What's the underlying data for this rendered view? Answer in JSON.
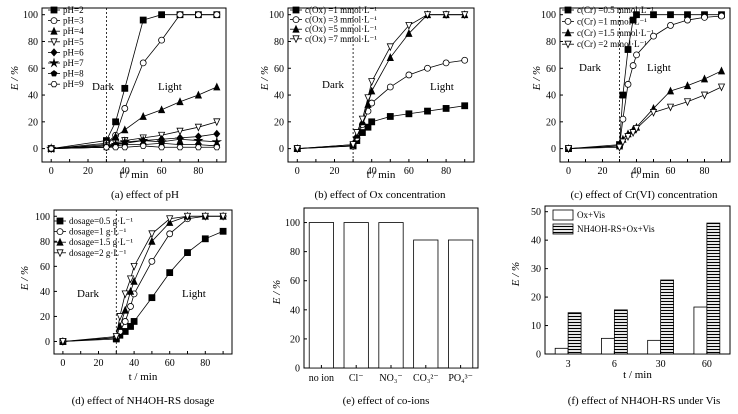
{
  "figure": {
    "panels": [
      {
        "caption": "(a) effect of pH",
        "annotation_left": "Dark",
        "annotation_right": "Light"
      },
      {
        "caption": "(b) effect of Ox concentration",
        "annotation_left": "Dark",
        "annotation_right": "Light"
      },
      {
        "caption": "(c) effect of Cr(VI) concentration",
        "annotation_left": "Dark",
        "annotation_right": "Light"
      },
      {
        "caption": "(d) effect of NH4OH-RS dosage",
        "annotation_left": "Dark",
        "annotation_right": "Light"
      },
      {
        "caption": "(e) effect of co-ions"
      },
      {
        "caption": "(f) effect of NH4OH-RS under Vis"
      }
    ]
  },
  "chart_data": [
    {
      "type": "line",
      "ylabel": "E / %",
      "xlabel": "t / min",
      "xlim": [
        -5,
        95
      ],
      "ylim": [
        -10,
        105
      ],
      "xticks": [
        0,
        10,
        20,
        30,
        40,
        50,
        60,
        70,
        80,
        90
      ],
      "yticks": [
        0,
        20,
        40,
        60,
        80,
        100
      ],
      "divider_x": 30,
      "legend": "top-left",
      "series": [
        {
          "name": "pH=2",
          "marker": "square",
          "x": [
            0,
            30,
            35,
            40,
            50,
            60,
            70,
            80,
            90
          ],
          "y": [
            0,
            6,
            20,
            45,
            96,
            100,
            100,
            100,
            100
          ]
        },
        {
          "name": "pH=3",
          "marker": "circle-open",
          "x": [
            0,
            30,
            35,
            40,
            50,
            60,
            70,
            80,
            90
          ],
          "y": [
            0,
            4,
            10,
            30,
            64,
            81,
            100,
            100,
            100
          ]
        },
        {
          "name": "pH=4",
          "marker": "triangle",
          "x": [
            0,
            30,
            35,
            40,
            50,
            60,
            70,
            80,
            90
          ],
          "y": [
            0,
            3,
            9,
            14,
            24,
            29,
            35,
            40,
            46
          ]
        },
        {
          "name": "pH=5",
          "marker": "triangle-down-open",
          "x": [
            0,
            30,
            35,
            40,
            50,
            60,
            70,
            80,
            90
          ],
          "y": [
            0,
            2,
            4,
            6,
            8,
            10,
            13,
            16,
            20
          ]
        },
        {
          "name": "pH=6",
          "marker": "diamond",
          "x": [
            0,
            30,
            35,
            40,
            50,
            60,
            70,
            80,
            90
          ],
          "y": [
            0,
            1,
            3,
            4,
            6,
            7,
            8,
            9,
            11
          ]
        },
        {
          "name": "pH=7",
          "marker": "star",
          "x": [
            0,
            30,
            35,
            40,
            50,
            60,
            70,
            80,
            90
          ],
          "y": [
            0,
            2,
            3,
            5,
            6,
            5,
            7,
            6,
            5
          ]
        },
        {
          "name": "pH=8",
          "marker": "pentagon",
          "x": [
            0,
            30,
            35,
            40,
            50,
            60,
            70,
            80,
            90
          ],
          "y": [
            0,
            1,
            2,
            3,
            3,
            4,
            3,
            3,
            2
          ]
        },
        {
          "name": "pH=9",
          "marker": "hexagon-open",
          "x": [
            0,
            30,
            35,
            40,
            50,
            60,
            70,
            80,
            90
          ],
          "y": [
            0,
            1,
            1,
            1,
            2,
            1,
            1,
            1,
            1
          ]
        }
      ]
    },
    {
      "type": "line",
      "ylabel": "E / %",
      "xlabel": "t / min",
      "xlim": [
        -5,
        95
      ],
      "ylim": [
        -10,
        105
      ],
      "xticks": [
        0,
        10,
        20,
        30,
        40,
        50,
        60,
        70,
        80,
        90
      ],
      "yticks": [
        0,
        20,
        40,
        60,
        80,
        100
      ],
      "divider_x": 30,
      "legend": "top-left",
      "series": [
        {
          "name": "c(Ox) =1 mmol·L⁻¹",
          "marker": "square",
          "x": [
            0,
            30,
            32,
            35,
            38,
            40,
            50,
            60,
            70,
            80,
            90
          ],
          "y": [
            0,
            2,
            6,
            12,
            16,
            20,
            24,
            26,
            28,
            30,
            32
          ]
        },
        {
          "name": "c(Ox) =3 mmol·L⁻¹",
          "marker": "circle-open",
          "x": [
            0,
            30,
            32,
            35,
            38,
            40,
            50,
            60,
            70,
            80,
            90
          ],
          "y": [
            0,
            2,
            8,
            18,
            28,
            34,
            46,
            55,
            60,
            64,
            66
          ]
        },
        {
          "name": "c(Ox) =5 mmol·L⁻¹",
          "marker": "triangle",
          "x": [
            0,
            30,
            32,
            35,
            38,
            40,
            50,
            60,
            70,
            80,
            90
          ],
          "y": [
            0,
            3,
            10,
            20,
            33,
            43,
            68,
            86,
            100,
            100,
            100
          ]
        },
        {
          "name": "c(Ox) =7 mmol·L⁻¹",
          "marker": "triangle-down-open",
          "x": [
            0,
            30,
            32,
            35,
            38,
            40,
            50,
            60,
            70,
            80,
            90
          ],
          "y": [
            0,
            3,
            12,
            22,
            38,
            50,
            76,
            92,
            100,
            100,
            100
          ]
        }
      ]
    },
    {
      "type": "line",
      "ylabel": "E / %",
      "xlabel": "t / min",
      "xlim": [
        -5,
        95
      ],
      "ylim": [
        -10,
        105
      ],
      "xticks": [
        0,
        10,
        20,
        30,
        40,
        50,
        60,
        70,
        80,
        90
      ],
      "yticks": [
        0,
        20,
        40,
        60,
        80,
        100
      ],
      "divider_x": 30,
      "legend": "top-left",
      "series": [
        {
          "name": "c(Cr) =0.5 mmol·L⁻¹",
          "marker": "square",
          "x": [
            0,
            30,
            32,
            35,
            38,
            40,
            50,
            60,
            70,
            80,
            90
          ],
          "y": [
            0,
            3,
            40,
            74,
            96,
            100,
            100,
            100,
            100,
            100,
            100
          ]
        },
        {
          "name": "c(Cr) =1 mmol·L⁻¹",
          "marker": "circle-open",
          "x": [
            0,
            30,
            32,
            35,
            38,
            40,
            50,
            60,
            70,
            80,
            90
          ],
          "y": [
            0,
            2,
            22,
            48,
            62,
            70,
            84,
            92,
            96,
            98,
            99
          ]
        },
        {
          "name": "c(Cr) =1.5 mmol·L⁻¹",
          "marker": "triangle",
          "x": [
            0,
            30,
            32,
            35,
            38,
            40,
            50,
            60,
            70,
            80,
            90
          ],
          "y": [
            0,
            2,
            7,
            11,
            14,
            16,
            30,
            43,
            47,
            52,
            58
          ]
        },
        {
          "name": "c(Cr) =2 mmol·L⁻¹",
          "marker": "triangle-down-open",
          "x": [
            0,
            30,
            32,
            35,
            38,
            40,
            50,
            60,
            70,
            80,
            90
          ],
          "y": [
            0,
            1,
            5,
            9,
            12,
            15,
            27,
            31,
            35,
            40,
            46
          ]
        }
      ]
    },
    {
      "type": "line",
      "ylabel": "E / %",
      "xlabel": "t / min",
      "xlim": [
        -5,
        95
      ],
      "ylim": [
        -10,
        105
      ],
      "xticks": [
        0,
        10,
        20,
        30,
        40,
        50,
        60,
        70,
        80,
        90
      ],
      "yticks": [
        0,
        20,
        40,
        60,
        80,
        100
      ],
      "divider_x": 30,
      "legend": "top-left",
      "series": [
        {
          "name": "dosage=0.5 g·L⁻¹",
          "marker": "square",
          "x": [
            0,
            30,
            32,
            35,
            38,
            40,
            50,
            60,
            70,
            80,
            90
          ],
          "y": [
            0,
            2,
            5,
            8,
            12,
            16,
            35,
            55,
            71,
            82,
            88
          ]
        },
        {
          "name": "dosage=1 g·L⁻¹",
          "marker": "circle-open",
          "x": [
            0,
            30,
            32,
            35,
            38,
            40,
            50,
            60,
            70,
            80,
            90
          ],
          "y": [
            0,
            3,
            8,
            16,
            28,
            38,
            64,
            86,
            98,
            100,
            100
          ]
        },
        {
          "name": "dosage=1.5 g·L⁻¹",
          "marker": "triangle",
          "x": [
            0,
            30,
            32,
            35,
            38,
            40,
            50,
            60,
            70,
            80,
            90
          ],
          "y": [
            0,
            3,
            12,
            25,
            40,
            48,
            80,
            95,
            100,
            100,
            100
          ]
        },
        {
          "name": "dosage=2 g·L⁻¹",
          "marker": "triangle-down-open",
          "x": [
            0,
            30,
            32,
            35,
            38,
            40,
            50,
            60,
            70,
            80,
            90
          ],
          "y": [
            0,
            4,
            20,
            38,
            50,
            60,
            86,
            98,
            100,
            100,
            100
          ]
        }
      ]
    },
    {
      "type": "bar",
      "ylabel": "E / %",
      "ylim": [
        0,
        110
      ],
      "yticks": [
        0,
        20,
        40,
        60,
        80,
        100
      ],
      "categories": [
        "no ion",
        "Cl⁻",
        "NO₃⁻",
        "CO₃²⁻",
        "PO₄³⁻"
      ],
      "values": [
        100,
        100,
        100,
        88,
        88
      ]
    },
    {
      "type": "bar",
      "ylabel": "E / %",
      "xlabel": "t / min",
      "ylim": [
        0,
        52
      ],
      "yticks": [
        0,
        10,
        20,
        30,
        40,
        50
      ],
      "categories": [
        "3",
        "6",
        "30",
        "60"
      ],
      "legend": "top-left",
      "series": [
        {
          "name": "Ox+Vis",
          "values": [
            2,
            5.5,
            4.8,
            16.5
          ]
        },
        {
          "name": "NH4OH-RS+Ox+Vis",
          "values": [
            14.5,
            15.5,
            26,
            46
          ]
        }
      ]
    }
  ]
}
